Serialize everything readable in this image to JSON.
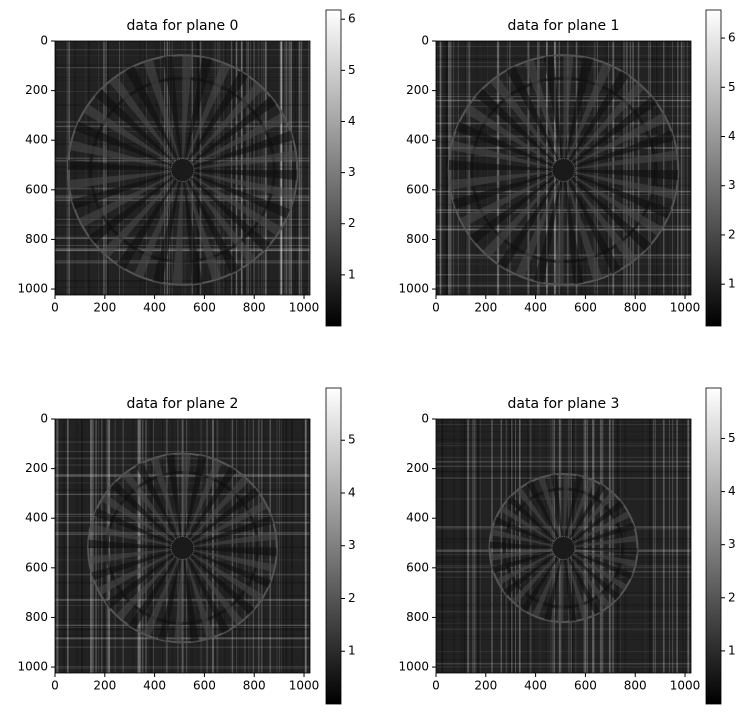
{
  "chart_data": [
    {
      "type": "image",
      "title": "data for plane 0",
      "colormap": "gray",
      "xlim": [
        0,
        1024
      ],
      "ylim": [
        1024,
        0
      ],
      "xticks": [
        0,
        200,
        400,
        600,
        800,
        1000
      ],
      "yticks": [
        0,
        200,
        400,
        600,
        800,
        1000
      ],
      "clim": [
        0,
        6.18
      ],
      "colorbar_ticks": [
        1,
        2,
        3,
        4,
        5,
        6
      ]
    },
    {
      "type": "image",
      "title": "data for plane 1",
      "colormap": "gray",
      "xlim": [
        0,
        1024
      ],
      "ylim": [
        1024,
        0
      ],
      "xticks": [
        0,
        200,
        400,
        600,
        800,
        1000
      ],
      "yticks": [
        0,
        200,
        400,
        600,
        800,
        1000
      ],
      "clim": [
        0.15,
        6.57
      ],
      "colorbar_ticks": [
        1,
        2,
        3,
        4,
        5,
        6
      ]
    },
    {
      "type": "image",
      "title": "data for plane 2",
      "colormap": "gray",
      "xlim": [
        0,
        1024
      ],
      "ylim": [
        1024,
        0
      ],
      "xticks": [
        0,
        200,
        400,
        600,
        800,
        1000
      ],
      "yticks": [
        0,
        200,
        400,
        600,
        800,
        1000
      ],
      "clim": [
        0,
        5.99
      ],
      "colorbar_ticks": [
        1,
        2,
        3,
        4,
        5
      ]
    },
    {
      "type": "image",
      "title": "data for plane 3",
      "colormap": "gray",
      "xlim": [
        0,
        1024
      ],
      "ylim": [
        1024,
        0
      ],
      "xticks": [
        0,
        200,
        400,
        600,
        800,
        1000
      ],
      "yticks": [
        0,
        200,
        400,
        600,
        800,
        1000
      ],
      "clim": [
        0,
        5.95
      ],
      "colorbar_ticks": [
        1,
        2,
        3,
        4,
        5
      ]
    }
  ]
}
